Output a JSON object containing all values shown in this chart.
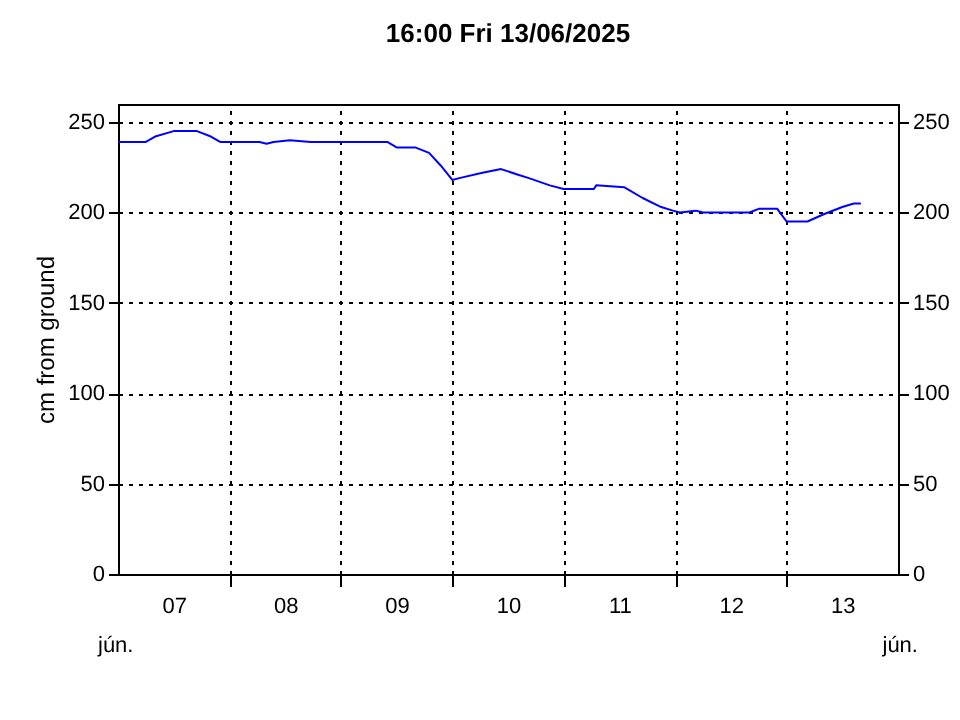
{
  "chart_data": {
    "type": "line",
    "title": "16:00   Fri  13/06/2025",
    "ylabel": "cm from ground",
    "x": [
      "2025-06-07T00:00",
      "2025-06-07T06:00",
      "2025-06-07T08:00",
      "2025-06-07T12:00",
      "2025-06-07T17:00",
      "2025-06-07T20:00",
      "2025-06-07T22:00",
      "2025-06-08T06:30",
      "2025-06-08T08:00",
      "2025-06-08T09:30",
      "2025-06-08T13:00",
      "2025-06-08T17:30",
      "2025-06-09T10:00",
      "2025-06-09T12:00",
      "2025-06-09T14:00",
      "2025-06-09T16:00",
      "2025-06-09T19:00",
      "2025-06-09T21:30",
      "2025-06-10T00:00",
      "2025-06-10T01:30",
      "2025-06-10T06:30",
      "2025-06-10T10:30",
      "2025-06-10T14:00",
      "2025-06-10T16:30",
      "2025-06-10T21:00",
      "2025-06-11T00:00",
      "2025-06-11T06:30",
      "2025-06-11T07:00",
      "2025-06-11T13:00",
      "2025-06-11T17:00",
      "2025-06-11T21:00",
      "2025-06-11T23:30",
      "2025-06-12T01:00",
      "2025-06-12T04:30",
      "2025-06-12T06:00",
      "2025-06-12T16:00",
      "2025-06-12T18:00",
      "2025-06-12T22:00",
      "2025-06-13T00:00",
      "2025-06-13T04:30",
      "2025-06-13T08:00",
      "2025-06-13T12:00",
      "2025-06-13T14:30",
      "2025-06-13T16:00"
    ],
    "series": [
      {
        "color": "#0000ff",
        "values": [
          239,
          239,
          242,
          245,
          245,
          242,
          239,
          239,
          238,
          239,
          240,
          239,
          239,
          236,
          236,
          236,
          233,
          226,
          218,
          219,
          222,
          224,
          221,
          219,
          215,
          213,
          213,
          215,
          214,
          208,
          203,
          201,
          200,
          201,
          200,
          200,
          202,
          202,
          195,
          195,
          199,
          203,
          205,
          205
        ]
      }
    ],
    "xlim": [
      "2025-06-07T00:00",
      "2025-06-14T00:00"
    ],
    "xticks": [
      {
        "value": "2025-06-07T12:00",
        "label": "07"
      },
      {
        "value": "2025-06-08T00:00",
        "label": null
      },
      {
        "value": "2025-06-08T12:00",
        "label": "08"
      },
      {
        "value": "2025-06-09T00:00",
        "label": null
      },
      {
        "value": "2025-06-09T12:00",
        "label": "09"
      },
      {
        "value": "2025-06-10T00:00",
        "label": null
      },
      {
        "value": "2025-06-10T12:00",
        "label": "10"
      },
      {
        "value": "2025-06-11T00:00",
        "label": null
      },
      {
        "value": "2025-06-11T12:00",
        "label": "11"
      },
      {
        "value": "2025-06-12T00:00",
        "label": null
      },
      {
        "value": "2025-06-12T12:00",
        "label": "12"
      },
      {
        "value": "2025-06-13T00:00",
        "label": null
      },
      {
        "value": "2025-06-13T12:00",
        "label": "13"
      }
    ],
    "ylim": [
      0,
      260
    ],
    "yticks": [
      0,
      50,
      100,
      150,
      200,
      250
    ],
    "y2lim": [
      0,
      260
    ],
    "y2ticks": [
      0,
      50,
      100,
      150,
      200,
      250
    ],
    "grid": true,
    "annotations": [
      "jún.",
      "jún."
    ]
  }
}
